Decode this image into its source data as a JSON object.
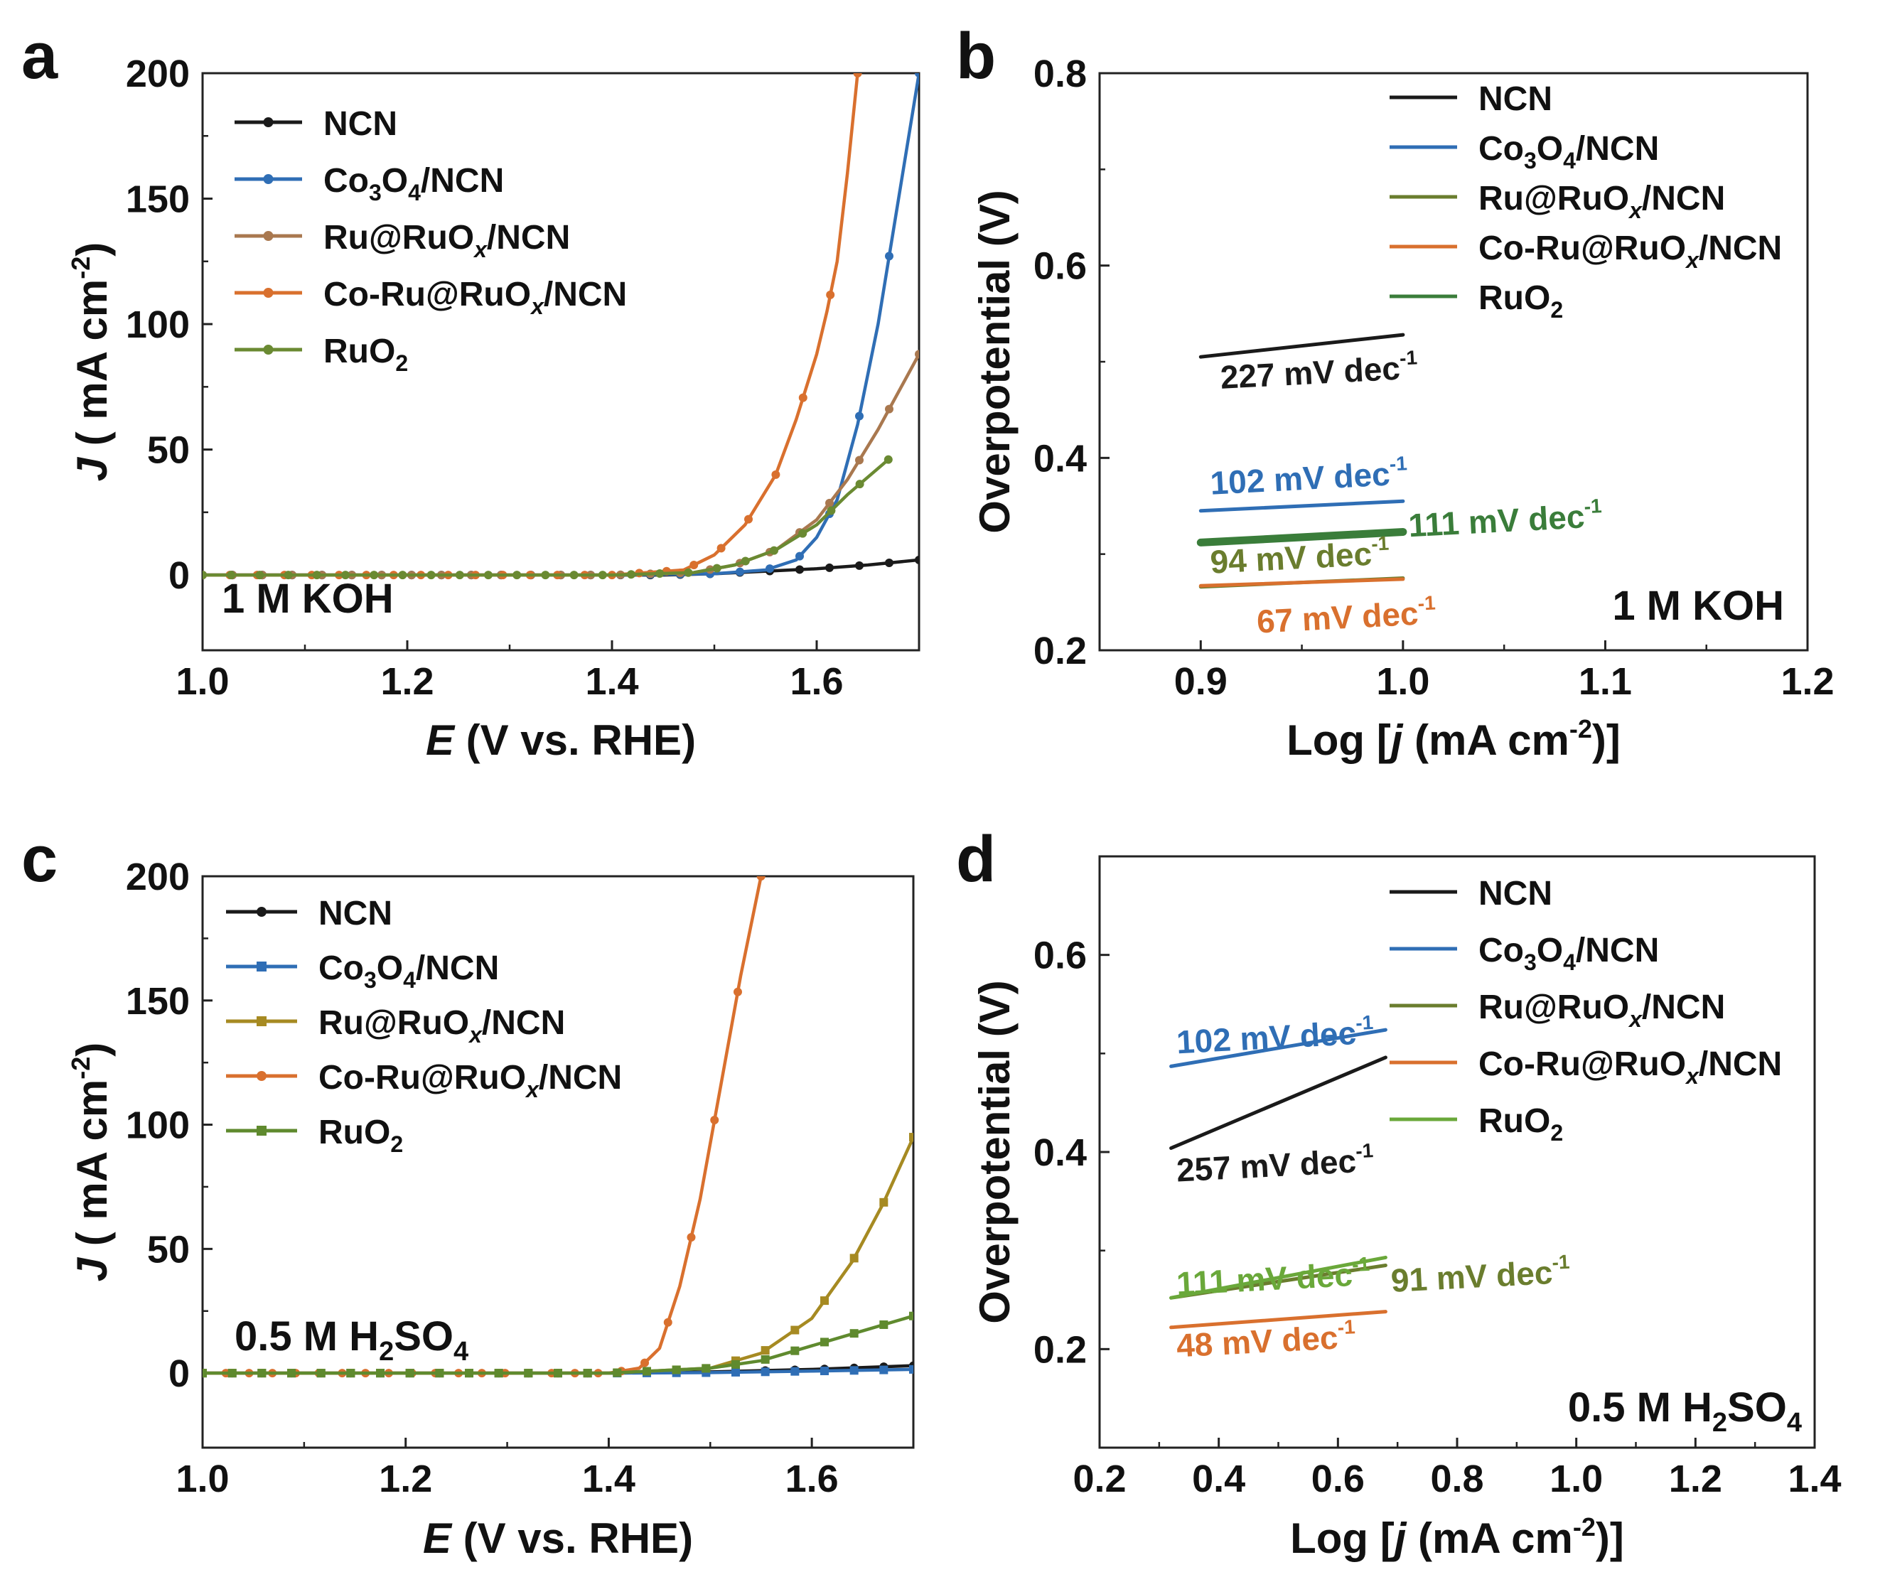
{
  "chart_data": [
    {
      "panel": "a",
      "type": "line",
      "xlabel": "E (V vs. RHE)",
      "ylabel": "J ( mA cm-2)",
      "xlim": [
        1.0,
        1.7
      ],
      "ylim": [
        -30,
        200
      ],
      "xticks": [
        "1.0",
        "1.2",
        "1.4",
        "1.6"
      ],
      "yticks": [
        "0",
        "50",
        "100",
        "150",
        "200"
      ],
      "annotation": "1 M KOH",
      "legend_position": "top-left",
      "series": [
        {
          "name": "NCN",
          "color": "#1a1a1a",
          "x": [
            1.0,
            1.1,
            1.2,
            1.3,
            1.4,
            1.45,
            1.5,
            1.55,
            1.6,
            1.65,
            1.7
          ],
          "y": [
            0,
            0,
            0,
            0,
            0,
            0,
            0.5,
            1.5,
            2.5,
            4,
            6
          ]
        },
        {
          "name": "Co3O4/NCN",
          "color": "#2f6eb5",
          "x": [
            1.0,
            1.2,
            1.4,
            1.5,
            1.55,
            1.58,
            1.6,
            1.62,
            1.64,
            1.66,
            1.68,
            1.7
          ],
          "y": [
            0,
            0,
            0,
            0.5,
            2,
            6,
            15,
            30,
            60,
            100,
            150,
            200
          ]
        },
        {
          "name": "Ru@RuOx/NCN",
          "color": "#a9784f",
          "x": [
            1.0,
            1.2,
            1.4,
            1.48,
            1.52,
            1.56,
            1.6,
            1.63,
            1.66,
            1.7
          ],
          "y": [
            0,
            0,
            0,
            1,
            4,
            10,
            22,
            38,
            58,
            88
          ]
        },
        {
          "name": "Co-Ru@RuOx/NCN",
          "color": "#d9702e",
          "x": [
            1.0,
            1.2,
            1.4,
            1.47,
            1.5,
            1.53,
            1.56,
            1.58,
            1.6,
            1.61,
            1.62,
            1.63,
            1.64
          ],
          "y": [
            0,
            0,
            0,
            2,
            8,
            20,
            40,
            62,
            88,
            105,
            125,
            160,
            200
          ]
        },
        {
          "name": "RuO2",
          "color": "#6a8a32",
          "x": [
            1.0,
            1.2,
            1.4,
            1.48,
            1.52,
            1.56,
            1.6,
            1.63,
            1.67
          ],
          "y": [
            0,
            0,
            0,
            1,
            4,
            10,
            20,
            32,
            46
          ]
        }
      ],
      "legend_labels": [
        {
          "main": "NCN",
          "sub1": "",
          "mid": "",
          "sub2": "",
          "tail": ""
        },
        {
          "main": "Co",
          "sub1": "3",
          "mid": "O",
          "sub2": "4",
          "tail": "/NCN"
        },
        {
          "main": "Ru@RuO",
          "sub1": "",
          "mid": "",
          "sub2": "x",
          "tail": "/NCN"
        },
        {
          "main": "Co-Ru@RuO",
          "sub1": "",
          "mid": "",
          "sub2": "x",
          "tail": "/NCN"
        },
        {
          "main": "RuO",
          "sub1": "",
          "mid": "",
          "sub2": "2",
          "tail": ""
        }
      ]
    },
    {
      "panel": "b",
      "type": "line",
      "xlabel": "Log [j (mA cm-2)]",
      "ylabel": "Overpotential (V)",
      "xlim": [
        0.85,
        1.2
      ],
      "ylim": [
        0.2,
        0.8
      ],
      "xticks": [
        "0.9",
        "1.0",
        "1.1",
        "1.2"
      ],
      "yticks": [
        "0.2",
        "0.4",
        "0.6",
        "0.8"
      ],
      "annotation": "1 M KOH",
      "legend_position": "top-right",
      "series": [
        {
          "name": "NCN",
          "color": "#1a1a1a",
          "x": [
            0.9,
            1.0
          ],
          "y": [
            0.505,
            0.528
          ]
        },
        {
          "name": "Co3O4/NCN",
          "color": "#2f6eb5",
          "x": [
            0.9,
            1.0
          ],
          "y": [
            0.345,
            0.355
          ]
        },
        {
          "name": "Ru@RuOx/NCN",
          "color": "#6a7d2e",
          "x": [
            0.9,
            1.0
          ],
          "y": [
            0.266,
            0.275
          ]
        },
        {
          "name": "Co-Ru@RuOx/NCN",
          "color": "#d9702e",
          "x": [
            0.9,
            1.0
          ],
          "y": [
            0.267,
            0.274
          ]
        },
        {
          "name": "RuO2",
          "color": "#3a7d3a",
          "x": [
            0.9,
            1.0
          ],
          "y": [
            0.312,
            0.323
          ]
        }
      ],
      "tafel_labels": [
        {
          "text": "227  mV dec",
          "color": "#1a1a1a",
          "x": 0.91,
          "y": 0.472
        },
        {
          "text": "102  mV dec",
          "color": "#2f6eb5",
          "x": 0.905,
          "y": 0.362
        },
        {
          "text": "111  mV dec",
          "color": "#3a7d3a",
          "x": 1.003,
          "y": 0.318
        },
        {
          "text": "94  mV dec",
          "color": "#6a7d2e",
          "x": 0.905,
          "y": 0.28
        },
        {
          "text": "67  mV dec",
          "color": "#d9702e",
          "x": 0.928,
          "y": 0.218
        }
      ],
      "legend_labels": [
        {
          "main": "NCN",
          "sub1": "",
          "mid": "",
          "sub2": "",
          "tail": ""
        },
        {
          "main": "Co",
          "sub1": "3",
          "mid": "O",
          "sub2": "4",
          "tail": "/NCN"
        },
        {
          "main": "Ru@RuO",
          "sub1": "",
          "mid": "",
          "sub2": "x",
          "tail": "/NCN"
        },
        {
          "main": "Co-Ru@RuO",
          "sub1": "",
          "mid": "",
          "sub2": "x",
          "tail": "/NCN"
        },
        {
          "main": "RuO",
          "sub1": "",
          "mid": "",
          "sub2": "2",
          "tail": ""
        }
      ]
    },
    {
      "panel": "c",
      "type": "line",
      "xlabel": "E (V vs. RHE)",
      "ylabel": "J ( mA cm-2)",
      "xlim": [
        1.0,
        1.7
      ],
      "ylim": [
        -30,
        200
      ],
      "xticks": [
        "1.0",
        "1.2",
        "1.4",
        "1.6"
      ],
      "yticks": [
        "0",
        "50",
        "100",
        "150",
        "200"
      ],
      "annotation": "0.5 M H2SO4",
      "legend_position": "top-left",
      "series": [
        {
          "name": "NCN",
          "color": "#1a1a1a",
          "x": [
            1.0,
            1.2,
            1.4,
            1.5,
            1.6,
            1.7
          ],
          "y": [
            0,
            0,
            0,
            0.5,
            1.5,
            3
          ]
        },
        {
          "name": "Co3O4/NCN",
          "color": "#2f6eb5",
          "x": [
            1.0,
            1.2,
            1.4,
            1.5,
            1.6,
            1.7
          ],
          "y": [
            0,
            0,
            0,
            0.2,
            0.8,
            1.5
          ]
        },
        {
          "name": "Ru@RuOx/NCN",
          "color": "#a68a22",
          "x": [
            1.0,
            1.2,
            1.4,
            1.5,
            1.55,
            1.6,
            1.64,
            1.67,
            1.7
          ],
          "y": [
            0,
            0,
            0,
            2,
            8,
            22,
            45,
            68,
            95
          ]
        },
        {
          "name": "Co-Ru@RuOx/NCN",
          "color": "#d9702e",
          "x": [
            1.0,
            1.2,
            1.4,
            1.43,
            1.45,
            1.47,
            1.49,
            1.51,
            1.53,
            1.55
          ],
          "y": [
            0,
            0,
            0,
            2,
            10,
            35,
            70,
            115,
            160,
            200
          ]
        },
        {
          "name": "RuO2",
          "color": "#5f8a2e",
          "x": [
            1.0,
            1.2,
            1.4,
            1.5,
            1.55,
            1.6,
            1.65,
            1.7
          ],
          "y": [
            0,
            0,
            0,
            2,
            5,
            11,
            17,
            23
          ]
        }
      ],
      "legend_labels": [
        {
          "main": "NCN",
          "sub1": "",
          "mid": "",
          "sub2": "",
          "tail": ""
        },
        {
          "main": "Co",
          "sub1": "3",
          "mid": "O",
          "sub2": "4",
          "tail": "/NCN"
        },
        {
          "main": "Ru@RuO",
          "sub1": "",
          "mid": "",
          "sub2": "x",
          "tail": "/NCN"
        },
        {
          "main": "Co-Ru@RuO",
          "sub1": "",
          "mid": "",
          "sub2": "x",
          "tail": "/NCN"
        },
        {
          "main": "RuO",
          "sub1": "",
          "mid": "",
          "sub2": "2",
          "tail": ""
        }
      ]
    },
    {
      "panel": "d",
      "type": "line",
      "xlabel": "Log [j (mA cm-2)]",
      "ylabel": "Overpotential (V)",
      "xlim": [
        0.2,
        1.4
      ],
      "ylim": [
        0.1,
        0.7
      ],
      "xticks": [
        "0.2",
        "0.4",
        "0.6",
        "0.8",
        "1.0",
        "1.2",
        "1.4"
      ],
      "yticks": [
        "0.2",
        "0.4",
        "0.6"
      ],
      "annotation": "0.5 M H2SO4",
      "legend_position": "top-right",
      "series": [
        {
          "name": "NCN",
          "color": "#1a1a1a",
          "x": [
            0.32,
            0.68
          ],
          "y": [
            0.404,
            0.496
          ]
        },
        {
          "name": "Co3O4/NCN",
          "color": "#2f6eb5",
          "x": [
            0.32,
            0.68
          ],
          "y": [
            0.487,
            0.524
          ]
        },
        {
          "name": "Ru@RuOx/NCN",
          "color": "#6a7d2e",
          "x": [
            0.32,
            0.68
          ],
          "y": [
            0.252,
            0.285
          ]
        },
        {
          "name": "Co-Ru@RuOx/NCN",
          "color": "#d9702e",
          "x": [
            0.32,
            0.68
          ],
          "y": [
            0.222,
            0.238
          ]
        },
        {
          "name": "RuO2",
          "color": "#6aa83a",
          "x": [
            0.32,
            0.68
          ],
          "y": [
            0.252,
            0.293
          ]
        }
      ],
      "tafel_labels": [
        {
          "text": "102  mV dec",
          "color": "#2f6eb5",
          "x": 0.33,
          "y": 0.5
        },
        {
          "text": "257  mV dec",
          "color": "#1a1a1a",
          "x": 0.33,
          "y": 0.37
        },
        {
          "text": "111  mV dec",
          "color": "#6aa83a",
          "x": 0.33,
          "y": 0.255
        },
        {
          "text": "91  mV dec",
          "color": "#6a7d2e",
          "x": 0.69,
          "y": 0.258
        },
        {
          "text": "48  mV dec",
          "color": "#d9702e",
          "x": 0.33,
          "y": 0.192
        }
      ],
      "legend_labels": [
        {
          "main": "NCN",
          "sub1": "",
          "mid": "",
          "sub2": "",
          "tail": ""
        },
        {
          "main": "Co",
          "sub1": "3",
          "mid": "O",
          "sub2": "4",
          "tail": "/NCN"
        },
        {
          "main": "Ru@RuO",
          "sub1": "",
          "mid": "",
          "sub2": "x",
          "tail": "/NCN"
        },
        {
          "main": "Co-Ru@RuO",
          "sub1": "",
          "mid": "",
          "sub2": "x",
          "tail": "/NCN"
        },
        {
          "main": "RuO",
          "sub1": "",
          "mid": "",
          "sub2": "2",
          "tail": ""
        }
      ]
    }
  ]
}
